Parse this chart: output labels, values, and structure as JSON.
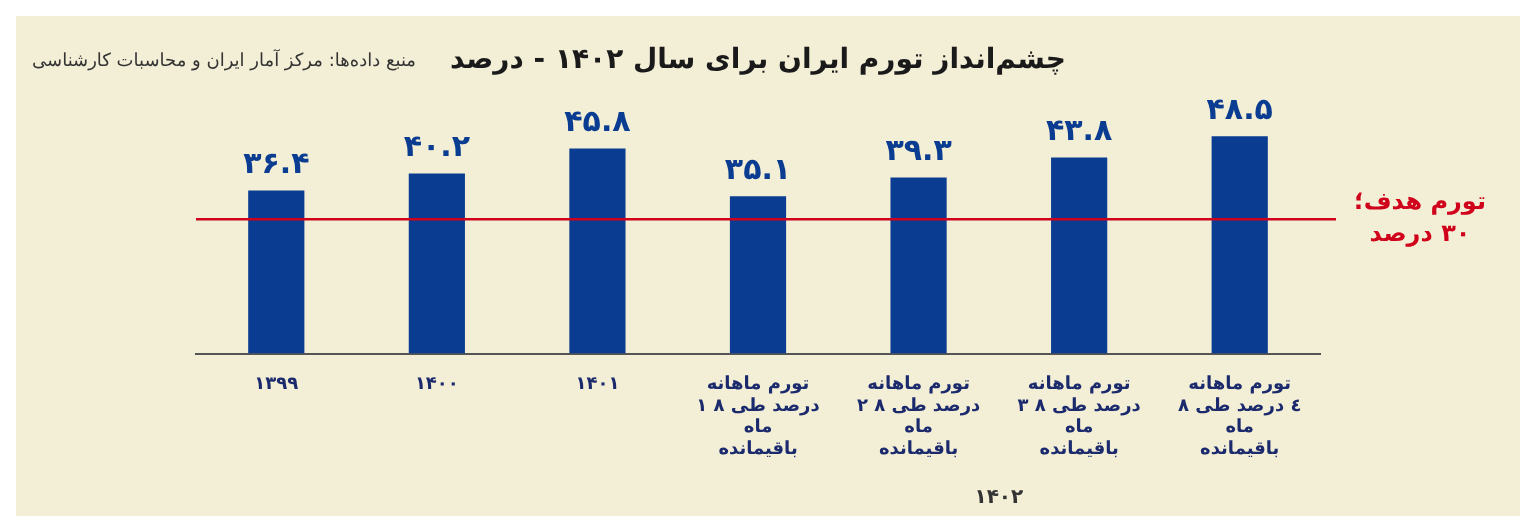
{
  "chart_data": {
    "type": "bar",
    "title": "چشم‌انداز تورم ایران برای سال ۱۴۰۲ - درصد",
    "categories": [
      "۱۳۹۹",
      "۱۴۰۰",
      "۱۴۰۱",
      "تورم ماهانه ۱ درصد طی ۸ ماه باقیمانده",
      "تورم ماهانه ۲ درصد طی ۸ ماه باقیمانده",
      "تورم ماهانه ۳ درصد طی ۸ ماه باقیمانده",
      "تورم ماهانه ٤ درصد طی ۸ ماه باقیمانده"
    ],
    "values": [
      36.4,
      40.2,
      45.8,
      35.1,
      39.3,
      43.8,
      48.5
    ],
    "value_labels": [
      "۳۶.۴",
      "۴۰.۲",
      "۴۵.۸",
      "۳۵.۱",
      "۳۹.۳",
      "۴۳.۸",
      "۴۸.۵"
    ],
    "color": "#0a3d91",
    "ref_lines": [
      {
        "axis": "y",
        "value": 30,
        "label": "تورم هدف؛ ۳۰ درصد",
        "color": "#d0021b"
      }
    ],
    "annotations": [
      "منبع داده‌ها: مرکز آمار ایران و محاسبات کارشناسی",
      "۱۴۰۲"
    ],
    "grid": false,
    "legend": false
  }
}
